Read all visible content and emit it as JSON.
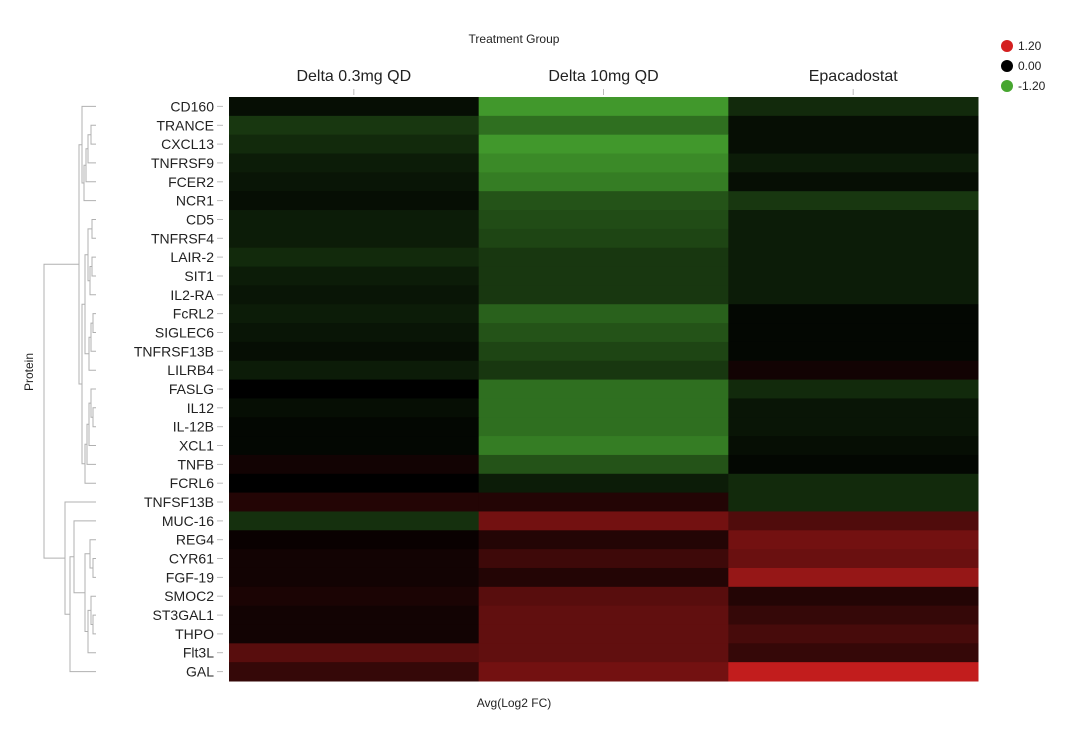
{
  "chart_data": {
    "type": "heatmap",
    "title": "Treatment Group",
    "xlabel": "Avg(Log2 FC)",
    "ylabel": "Protein",
    "columns": [
      "Delta 0.3mg QD",
      "Delta 10mg QD",
      "Epacadostat"
    ],
    "rows": [
      "CD160",
      "TRANCE",
      "CXCL13",
      "TNFRSF9",
      "FCER2",
      "NCR1",
      "CD5",
      "TNFRSF4",
      "LAIR-2",
      "SIT1",
      "IL2-RA",
      "FcRL2",
      "SIGLEC6",
      "TNFRSF13B",
      "LILRB4",
      "FASLG",
      "IL12",
      "IL-12B",
      "XCL1",
      "TNFB",
      "FCRL6",
      "TNFSF13B",
      "MUC-16",
      "REG4",
      "CYR61",
      "FGF-19",
      "SMOC2",
      "ST3GAL1",
      "THPO",
      "Flt3L",
      "GAL"
    ],
    "values": [
      [
        -0.1,
        -1.1,
        -0.3
      ],
      [
        -0.4,
        -0.8,
        -0.1
      ],
      [
        -0.3,
        -1.1,
        -0.1
      ],
      [
        -0.2,
        -1.0,
        -0.2
      ],
      [
        -0.15,
        -0.9,
        -0.1
      ],
      [
        -0.1,
        -0.6,
        -0.4
      ],
      [
        -0.2,
        -0.55,
        -0.2
      ],
      [
        -0.2,
        -0.5,
        -0.2
      ],
      [
        -0.3,
        -0.4,
        -0.2
      ],
      [
        -0.2,
        -0.4,
        -0.2
      ],
      [
        -0.15,
        -0.4,
        -0.2
      ],
      [
        -0.2,
        -0.7,
        -0.05
      ],
      [
        -0.15,
        -0.6,
        -0.05
      ],
      [
        -0.1,
        -0.5,
        -0.05
      ],
      [
        -0.2,
        -0.4,
        0.1
      ],
      [
        0.0,
        -0.8,
        -0.3
      ],
      [
        -0.1,
        -0.8,
        -0.15
      ],
      [
        -0.05,
        -0.8,
        -0.15
      ],
      [
        -0.05,
        -0.9,
        -0.1
      ],
      [
        0.1,
        -0.6,
        -0.05
      ],
      [
        0.0,
        -0.2,
        -0.3
      ],
      [
        0.2,
        0.2,
        -0.3
      ],
      [
        -0.35,
        0.65,
        0.45
      ],
      [
        0.05,
        0.2,
        0.65
      ],
      [
        0.1,
        0.35,
        0.6
      ],
      [
        0.1,
        0.2,
        0.85
      ],
      [
        0.15,
        0.5,
        0.2
      ],
      [
        0.1,
        0.55,
        0.3
      ],
      [
        0.1,
        0.55,
        0.4
      ],
      [
        0.5,
        0.55,
        0.3
      ],
      [
        0.3,
        0.65,
        1.1
      ]
    ],
    "color_scale": {
      "max": 1.2,
      "mid": 0.0,
      "min": -1.2,
      "max_color": "#d42020",
      "mid_color": "#000000",
      "min_color": "#47a630"
    },
    "legend": {
      "position": "top-right",
      "entries": [
        {
          "label": "1.20",
          "color": "#d42020"
        },
        {
          "label": "0.00",
          "color": "#000000"
        },
        {
          "label": "-1.20",
          "color": "#47a630"
        }
      ]
    }
  }
}
